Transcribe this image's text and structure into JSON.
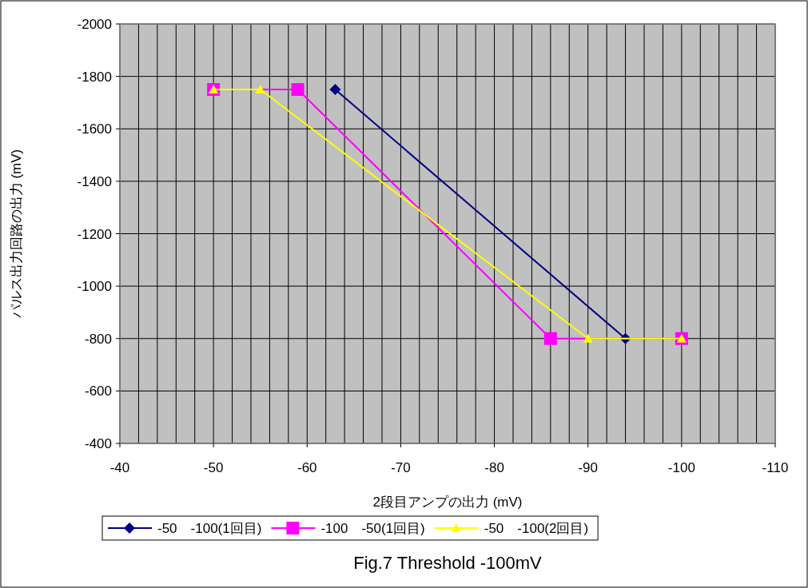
{
  "chart_data": {
    "type": "line",
    "title": "Fig.7 Threshold -100mV",
    "xlabel": "2段目アンプの出力 (mV)",
    "ylabel": "パルス出力回路の出力 (mV)",
    "xlim": [
      -40,
      -110
    ],
    "xticks": [
      -40,
      -50,
      -60,
      -70,
      -80,
      -90,
      -100,
      -110
    ],
    "ylim": [
      -400,
      -2000
    ],
    "yticks": [
      -400,
      -600,
      -800,
      -1000,
      -1200,
      -1400,
      -1600,
      -1800,
      -2000
    ],
    "grid": true,
    "legend": "bottom",
    "series": [
      {
        "name": "-50　-100(1回目)",
        "color": "#000080",
        "marker": "diamond",
        "x": [
          -63,
          -94
        ],
        "values": [
          -1750,
          -800
        ]
      },
      {
        "name": "-100　-50(1回目)",
        "color": "#ff00ff",
        "marker": "square",
        "x": [
          -50,
          -59,
          -86,
          -100
        ],
        "values": [
          -1750,
          -1750,
          -800,
          -800
        ]
      },
      {
        "name": "-50　-100(2回目)",
        "color": "#ffff00",
        "marker": "triangle",
        "x": [
          -50,
          -55,
          -90,
          -100
        ],
        "values": [
          -1750,
          -1750,
          -800,
          -800
        ]
      }
    ]
  }
}
